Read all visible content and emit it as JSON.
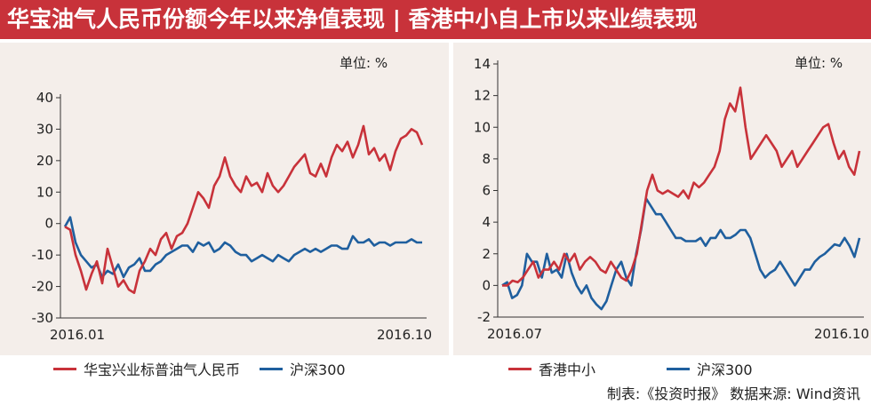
{
  "header": {
    "title": "华宝油气人民币份额今年以来净值表现 | 香港中小自上市以来业绩表现"
  },
  "colors": {
    "red": "#c8323a",
    "blue": "#1f5f9e",
    "panel_bg": "#f4eeea",
    "header_bg": "#c8323a"
  },
  "chart_data": [
    {
      "type": "line",
      "unit_label": "单位: %",
      "x_start_label": "2016.01",
      "x_end_label": "2016.10",
      "ylim": [
        -30,
        40
      ],
      "yticks": [
        -30,
        -20,
        -10,
        0,
        10,
        20,
        30,
        40
      ],
      "grid": false,
      "legend_position": "bottom",
      "series": [
        {
          "name": "华宝兴业标普油气人民币",
          "color": "#c8323a",
          "values": [
            -1,
            -2,
            -10,
            -15,
            -21,
            -16,
            -12,
            -19,
            -8,
            -14,
            -20,
            -18,
            -21,
            -22,
            -15,
            -12,
            -8,
            -10,
            -5,
            -3,
            -8,
            -4,
            -3,
            0,
            5,
            10,
            8,
            5,
            12,
            15,
            21,
            15,
            12,
            10,
            15,
            12,
            13,
            10,
            16,
            12,
            10,
            12,
            15,
            18,
            20,
            22,
            16,
            15,
            19,
            15,
            21,
            25,
            23,
            26,
            21,
            25,
            31,
            22,
            24,
            20,
            22,
            17,
            23,
            27,
            28,
            30,
            29,
            25
          ]
        },
        {
          "name": "沪深300",
          "color": "#1f5f9e",
          "values": [
            -1,
            2,
            -6,
            -10,
            -12,
            -14,
            -13,
            -17,
            -15,
            -16,
            -13,
            -17,
            -14,
            -13,
            -11,
            -15,
            -15,
            -13,
            -12,
            -10,
            -9,
            -8,
            -7,
            -7,
            -9,
            -6,
            -7,
            -6,
            -9,
            -8,
            -6,
            -7,
            -9,
            -10,
            -10,
            -12,
            -11,
            -10,
            -11,
            -12,
            -10,
            -11,
            -12,
            -10,
            -9,
            -8,
            -9,
            -8,
            -9,
            -8,
            -7,
            -7,
            -8,
            -8,
            -4,
            -6,
            -6,
            -5,
            -7,
            -6,
            -6,
            -7,
            -6,
            -6,
            -6,
            -5,
            -6,
            -6
          ]
        }
      ]
    },
    {
      "type": "line",
      "unit_label": "单位: %",
      "x_start_label": "2016.07",
      "x_end_label": "2016.10",
      "ylim": [
        -2,
        14
      ],
      "yticks": [
        -2,
        0,
        2,
        4,
        6,
        8,
        10,
        12,
        14
      ],
      "grid": false,
      "legend_position": "bottom",
      "series": [
        {
          "name": "香港中小",
          "color": "#c8323a",
          "values": [
            0,
            0,
            0.3,
            0.2,
            0.5,
            1,
            1.5,
            0.5,
            1,
            1,
            1.5,
            1,
            2,
            1.5,
            2,
            1,
            1.5,
            1.8,
            1.5,
            1,
            0.8,
            1.5,
            1,
            0.5,
            0.3,
            1,
            2,
            4,
            6,
            7,
            6,
            5.8,
            6,
            5.8,
            5.6,
            6,
            5.5,
            6.5,
            6.2,
            6.5,
            7,
            7.5,
            8.5,
            10.5,
            11.5,
            11,
            12.5,
            10,
            8,
            8.5,
            9,
            9.5,
            9,
            8.5,
            7.5,
            8,
            8.5,
            7.5,
            8,
            8.5,
            9,
            9.5,
            10,
            10.2,
            9,
            8,
            8.5,
            7.5,
            7,
            8.5
          ]
        },
        {
          "name": "沪深300",
          "color": "#1f5f9e",
          "values": [
            0,
            0.2,
            -0.8,
            -0.6,
            0,
            2,
            1.5,
            1.5,
            0.5,
            2,
            0.8,
            1,
            0.5,
            2,
            0.8,
            0,
            -0.5,
            0,
            -0.8,
            -1.2,
            -1.5,
            -1,
            0,
            1,
            1.5,
            0.5,
            0,
            2,
            3.5,
            5.5,
            5,
            4.5,
            4.5,
            4,
            3.5,
            3,
            3,
            2.8,
            2.8,
            2.8,
            3,
            2.5,
            3,
            3,
            3.5,
            3,
            3,
            3.2,
            3.5,
            3.5,
            3,
            2,
            1,
            0.5,
            0.8,
            1,
            1.5,
            1,
            0.5,
            0,
            0.5,
            1,
            1,
            1.5,
            1.8,
            2,
            2.3,
            2.6,
            2.5,
            3,
            2.5,
            1.8,
            3
          ]
        }
      ]
    }
  ],
  "footer": {
    "text": "制表:《投资时报》  数据来源: Wind资讯"
  }
}
